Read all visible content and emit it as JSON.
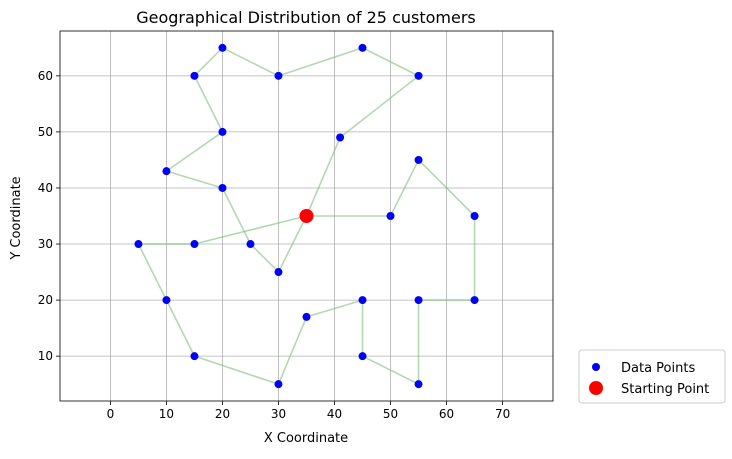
{
  "chart_data": {
    "type": "scatter",
    "title": "Geographical Distribution of 25 customers",
    "xlabel": "X Coordinate",
    "ylabel": "Y Coordinate",
    "xlim": [
      -9,
      79
    ],
    "ylim": [
      2,
      68
    ],
    "xticks": [
      0,
      10,
      20,
      30,
      40,
      50,
      60,
      70
    ],
    "yticks": [
      10,
      20,
      30,
      40,
      50,
      60
    ],
    "grid": true,
    "legend_position": "outside-bottom-right",
    "legend": [
      {
        "label": "Data Points",
        "marker": "circle",
        "color": "#0000ff"
      },
      {
        "label": "Starting Point",
        "marker": "circle",
        "color": "#ff0000"
      }
    ],
    "route_color": "#7fbf7f",
    "point_color": "#0000ff",
    "start_color": "#ff0000",
    "start": {
      "x": 35,
      "y": 35
    },
    "points": [
      {
        "x": 5,
        "y": 30
      },
      {
        "x": 10,
        "y": 20
      },
      {
        "x": 10,
        "y": 43
      },
      {
        "x": 15,
        "y": 10
      },
      {
        "x": 15,
        "y": 30
      },
      {
        "x": 15,
        "y": 60
      },
      {
        "x": 20,
        "y": 40
      },
      {
        "x": 20,
        "y": 50
      },
      {
        "x": 20,
        "y": 65
      },
      {
        "x": 25,
        "y": 30
      },
      {
        "x": 30,
        "y": 5
      },
      {
        "x": 30,
        "y": 25
      },
      {
        "x": 30,
        "y": 60
      },
      {
        "x": 35,
        "y": 17
      },
      {
        "x": 41,
        "y": 49
      },
      {
        "x": 45,
        "y": 10
      },
      {
        "x": 45,
        "y": 20
      },
      {
        "x": 45,
        "y": 65
      },
      {
        "x": 50,
        "y": 35
      },
      {
        "x": 55,
        "y": 5
      },
      {
        "x": 55,
        "y": 20
      },
      {
        "x": 55,
        "y": 45
      },
      {
        "x": 55,
        "y": 60
      },
      {
        "x": 65,
        "y": 20
      },
      {
        "x": 65,
        "y": 35
      }
    ],
    "route": [
      [
        35,
        35
      ],
      [
        50,
        35
      ],
      [
        55,
        45
      ],
      [
        65,
        35
      ],
      [
        65,
        20
      ],
      [
        55,
        20
      ],
      [
        55,
        5
      ],
      [
        45,
        10
      ],
      [
        45,
        20
      ],
      [
        35,
        17
      ],
      [
        30,
        5
      ],
      [
        15,
        10
      ],
      [
        10,
        20
      ],
      [
        5,
        30
      ],
      [
        15,
        30
      ],
      [
        35,
        35
      ],
      [
        30,
        25
      ],
      [
        25,
        30
      ],
      [
        20,
        40
      ],
      [
        10,
        43
      ],
      [
        20,
        50
      ],
      [
        15,
        60
      ],
      [
        20,
        65
      ],
      [
        30,
        60
      ],
      [
        45,
        65
      ],
      [
        55,
        60
      ],
      [
        41,
        49
      ],
      [
        35,
        35
      ]
    ]
  }
}
